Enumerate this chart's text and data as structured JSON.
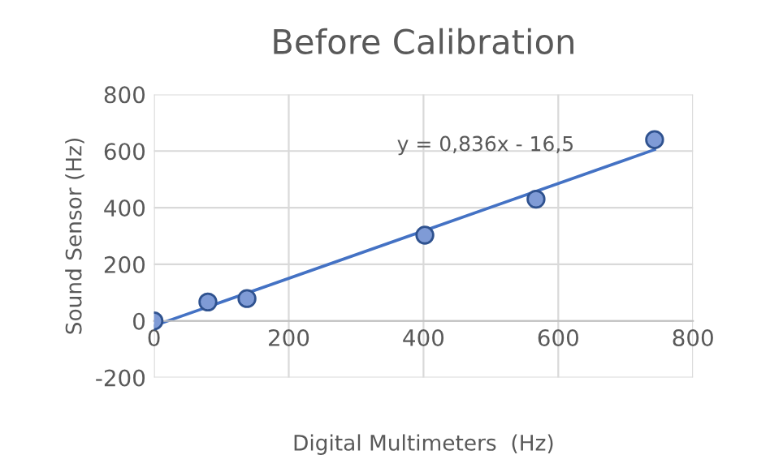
{
  "chart_data": {
    "type": "scatter",
    "title": "Before Calibration",
    "xlabel": "Digital Multimeters  (Hz)",
    "ylabel": "Sound Sensor (Hz)",
    "series": [
      {
        "marker": "circle",
        "color": "#7f9bd6",
        "x": [
          0,
          80,
          138,
          402,
          567,
          743
        ],
        "values": [
          0,
          67,
          79,
          303,
          430,
          640
        ]
      },
      {
        "type": "line",
        "color": "#4472c4",
        "x": [
          0,
          743
        ],
        "values": [
          -17,
          605
        ]
      }
    ],
    "annotations": [
      "y = 0,836x - 16,5"
    ],
    "xlim": [
      0,
      800
    ],
    "xticks": [
      0,
      200,
      400,
      600,
      800
    ],
    "ylim": [
      -200,
      800
    ],
    "yticks": [
      -200,
      0,
      200,
      400,
      600,
      800
    ],
    "grid": true,
    "line_style": "solid"
  }
}
